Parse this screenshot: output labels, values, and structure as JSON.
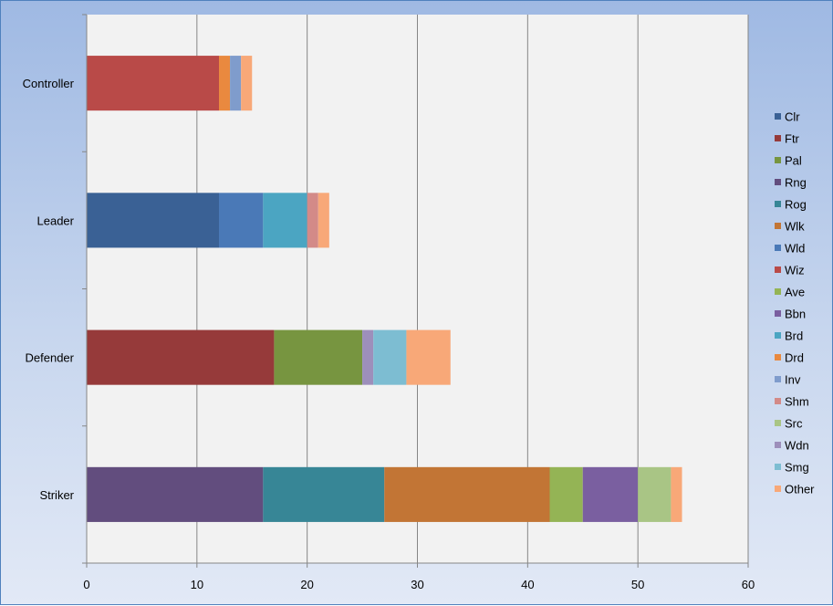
{
  "chart_data": {
    "type": "bar",
    "orientation": "horizontal",
    "stacked": true,
    "categories": [
      "Striker",
      "Defender",
      "Leader",
      "Controller"
    ],
    "xlim": [
      0,
      60
    ],
    "xticks": [
      "0",
      "10",
      "20",
      "30",
      "40",
      "50",
      "60"
    ],
    "grid": "vertical gridlines on",
    "legend_position": "right",
    "series": [
      {
        "name": "Clr",
        "color": "#3a6195",
        "values": [
          0,
          0,
          12,
          0
        ]
      },
      {
        "name": "Ftr",
        "color": "#963a3a",
        "values": [
          0,
          17,
          0,
          0
        ]
      },
      {
        "name": "Pal",
        "color": "#779540",
        "values": [
          0,
          8,
          0,
          0
        ]
      },
      {
        "name": "Rng",
        "color": "#624d7e",
        "values": [
          16,
          0,
          0,
          0
        ]
      },
      {
        "name": "Rog",
        "color": "#378696",
        "values": [
          11,
          0,
          0,
          0
        ]
      },
      {
        "name": "Wlk",
        "color": "#c27535",
        "values": [
          15,
          0,
          0,
          0
        ]
      },
      {
        "name": "Wld",
        "color": "#4a79b7",
        "values": [
          0,
          0,
          4,
          0
        ]
      },
      {
        "name": "Wiz",
        "color": "#b94a48",
        "values": [
          0,
          0,
          0,
          12
        ]
      },
      {
        "name": "Ave",
        "color": "#94b455",
        "values": [
          3,
          0,
          0,
          0
        ]
      },
      {
        "name": "Bbn",
        "color": "#7a5fa0",
        "values": [
          5,
          0,
          0,
          0
        ]
      },
      {
        "name": "Brd",
        "color": "#4ba5c2",
        "values": [
          0,
          0,
          4,
          0
        ]
      },
      {
        "name": "Drd",
        "color": "#e9893f",
        "values": [
          0,
          0,
          0,
          1
        ]
      },
      {
        "name": "Inv",
        "color": "#7f9ccc",
        "values": [
          0,
          0,
          0,
          1
        ]
      },
      {
        "name": "Shm",
        "color": "#d38a88",
        "values": [
          0,
          0,
          1,
          0
        ]
      },
      {
        "name": "Src",
        "color": "#a9c585",
        "values": [
          3,
          0,
          0,
          0
        ]
      },
      {
        "name": "Wdn",
        "color": "#9d8fbb",
        "values": [
          0,
          1,
          0,
          0
        ]
      },
      {
        "name": "Smg",
        "color": "#7dbdd2",
        "values": [
          0,
          3,
          0,
          0
        ]
      },
      {
        "name": "Other",
        "color": "#f8a878",
        "values": [
          1,
          4,
          1,
          1
        ]
      }
    ]
  }
}
